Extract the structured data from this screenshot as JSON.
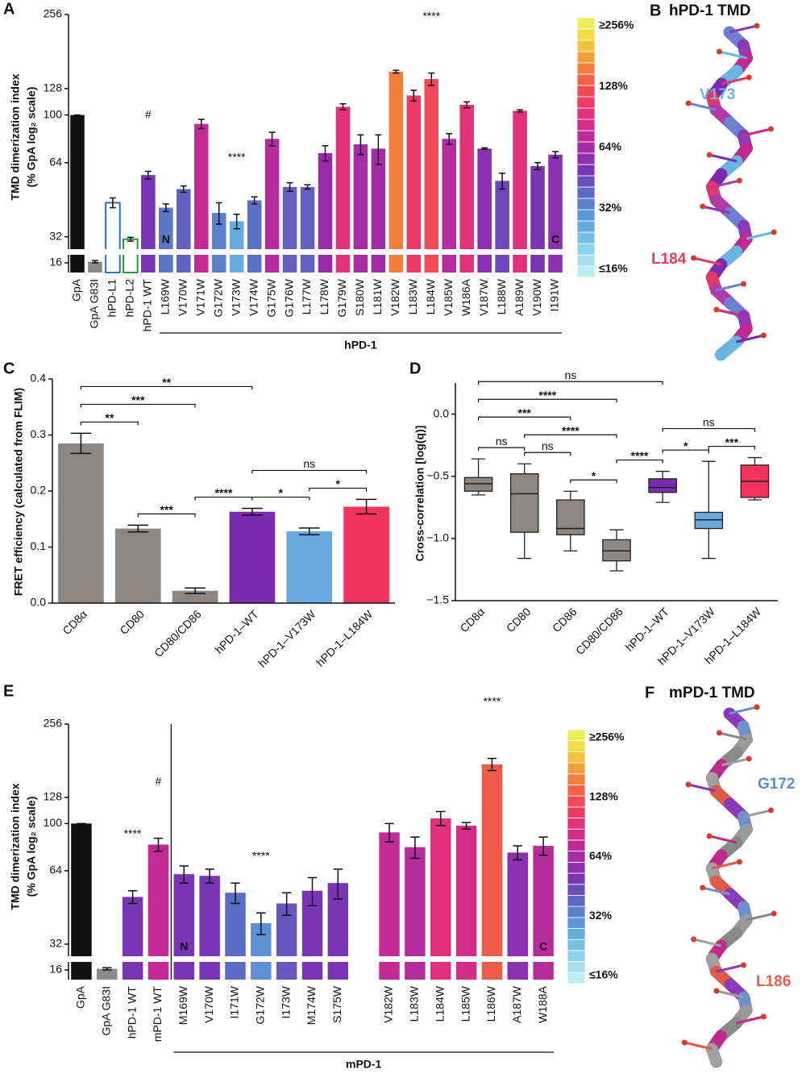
{
  "chart_data": [
    {
      "panel": "A",
      "type": "bar",
      "yscale": "log2",
      "ylabel": [
        "TMD dimerization index",
        "(% GpA log₂ scale)"
      ],
      "ylim": [
        16,
        256
      ],
      "yticks": [
        16,
        32,
        64,
        100,
        128,
        256
      ],
      "xtick_rotation": 90,
      "categories": [
        "GpA",
        "GpA G83I",
        "hPD-L1",
        "hPD-L2",
        "hPD-1 WT",
        "L169W",
        "V170W",
        "V171W",
        "G172W",
        "V173W",
        "V174W",
        "G175W",
        "G176W",
        "L177W",
        "L178W",
        "G179W",
        "S180W",
        "L181W",
        "V182W",
        "L183W",
        "L184W",
        "V185W",
        "W186A",
        "V187W",
        "L188W",
        "A189W",
        "V190W",
        "I191W"
      ],
      "values": [
        100,
        16.5,
        44,
        30,
        57,
        42,
        50,
        92,
        40,
        37,
        45,
        80,
        51,
        51,
        70,
        108,
        76,
        73,
        150,
        120,
        140,
        80,
        110,
        73,
        54,
        104,
        62,
        69
      ],
      "errors": [
        0,
        0.5,
        2,
        1.5,
        2,
        1.5,
        1.5,
        4,
        4,
        2.5,
        1.5,
        5,
        2,
        1,
        5,
        3,
        7,
        10,
        2,
        6,
        8,
        4,
        3,
        0.5,
        4,
        1,
        2,
        2
      ],
      "colors": [
        "#111111",
        "#8a8a8a",
        "#2e6fc0",
        "#2a9a3a",
        "#7a35b5",
        "#5a78c8",
        "#6262c2",
        "#c42a96",
        "#5d7fcc",
        "#64abe0",
        "#5a70c6",
        "#b52c9c",
        "#6360c0",
        "#6360c0",
        "#9a2aaa",
        "#e3327a",
        "#a62ca4",
        "#a22ca6",
        "#f2803c",
        "#ec3a66",
        "#f04a58",
        "#b52c9c",
        "#e3327a",
        "#8a30b0",
        "#6e48ba",
        "#e0307e",
        "#7a35b5",
        "#8a30b0"
      ],
      "hollow": [
        false,
        false,
        true,
        true,
        false,
        false,
        false,
        false,
        false,
        false,
        false,
        false,
        false,
        false,
        false,
        false,
        false,
        false,
        false,
        false,
        false,
        false,
        false,
        false,
        false,
        false,
        false,
        false
      ],
      "annotations": [
        {
          "text": "#",
          "index": 4
        },
        {
          "text": "****",
          "index": 9
        },
        {
          "text": "****",
          "index": 20
        }
      ],
      "inner_labels": [
        {
          "text": "N",
          "index": 5
        },
        {
          "text": "C",
          "index": 27
        }
      ],
      "group": {
        "label": "hPD-1",
        "from": 5,
        "to": 27
      },
      "colorbar": {
        "colors": [
          "#bdeef3",
          "#a6e0ee",
          "#8fd0ec",
          "#78bfe8",
          "#64abe0",
          "#5d96d6",
          "#5a80cc",
          "#5f68c2",
          "#6a4fba",
          "#7a35b5",
          "#9030ae",
          "#a62ca4",
          "#bd2b98",
          "#d22d88",
          "#e33277",
          "#ed3a66",
          "#f04a58",
          "#f2644a",
          "#f38040",
          "#f5a03c",
          "#f5c240",
          "#f3dc48",
          "#efec5a"
        ],
        "ticks": [
          {
            "value": 16,
            "label": "≤16%"
          },
          {
            "value": 32,
            "label": "32%"
          },
          {
            "value": 64,
            "label": "64%"
          },
          {
            "value": 128,
            "label": "128%"
          },
          {
            "value": 256,
            "label": "≥256%"
          }
        ]
      }
    },
    {
      "panel": "C",
      "type": "bar",
      "ylabel": "FRET efficiency (calculated from FLIM)",
      "ylim": [
        0,
        0.4
      ],
      "yticks": [
        {
          "value": 0,
          "label": "0.0"
        },
        0.1,
        0.2,
        0.3,
        0.4
      ],
      "xtick_rotation": 45,
      "categories": [
        "CD8α",
        "CD80",
        "CD80/CD86",
        "hPD-1–WT",
        "hPD-1–V173W",
        "hPD-1–L184W"
      ],
      "values": [
        0.285,
        0.133,
        0.022,
        0.163,
        0.128,
        0.172
      ],
      "errors": [
        0.018,
        0.006,
        0.005,
        0.006,
        0.006,
        0.013
      ],
      "colors": [
        "#8c8782",
        "#8c8782",
        "#8c8782",
        "#7b2ab0",
        "#6aa9de",
        "#f0345c"
      ],
      "brackets": [
        {
          "pair": [
            0,
            3
          ],
          "label": "**"
        },
        {
          "pair": [
            0,
            2
          ],
          "label": "***"
        },
        {
          "pair": [
            0,
            1
          ],
          "label": "**"
        },
        {
          "pair": [
            3,
            5
          ],
          "label": "ns"
        },
        {
          "pair": [
            1,
            2
          ],
          "label": "***"
        },
        {
          "pair": [
            2,
            3
          ],
          "label": "****"
        },
        {
          "pair": [
            3,
            4
          ],
          "label": "*"
        },
        {
          "pair": [
            4,
            5
          ],
          "label": "*"
        }
      ]
    },
    {
      "panel": "D",
      "type": "box",
      "ylabel": "Cross-correlation [log(q)]",
      "ylim": [
        -1.5,
        0.25
      ],
      "yticks": [
        {
          "value": -1.5,
          "label": "−1.5"
        },
        {
          "value": -1,
          "label": "−1.0"
        },
        {
          "value": -0.5,
          "label": "−0.5"
        },
        {
          "value": 0,
          "label": "0.0"
        }
      ],
      "xtick_rotation": 45,
      "categories": [
        "CD8α",
        "CD80",
        "CD86",
        "CD80/CD86",
        "hPD-1–WT",
        "hPD-1–V173W",
        "hPD-1–L184W"
      ],
      "whisker_low": [
        -0.65,
        -1.16,
        -1.1,
        -1.26,
        -0.71,
        -1.16,
        -0.69
      ],
      "q1": [
        -0.62,
        -0.95,
        -0.97,
        -1.18,
        -0.63,
        -0.92,
        -0.67
      ],
      "median": [
        -0.56,
        -0.64,
        -0.92,
        -1.1,
        -0.59,
        -0.85,
        -0.54
      ],
      "q3": [
        -0.51,
        -0.48,
        -0.69,
        -1.01,
        -0.52,
        -0.79,
        -0.41
      ],
      "whisker_high": [
        -0.36,
        -0.4,
        -0.62,
        -0.93,
        -0.46,
        -0.38,
        -0.35
      ],
      "colors": [
        "#8c8782",
        "#8c8782",
        "#8c8782",
        "#8c8782",
        "#7b2ab0",
        "#6aa9de",
        "#f0345c"
      ],
      "brackets": [
        {
          "pair": [
            0,
            4
          ],
          "label": "ns"
        },
        {
          "pair": [
            0,
            3
          ],
          "label": "****"
        },
        {
          "pair": [
            1,
            3
          ],
          "label": "****"
        },
        {
          "pair": [
            0,
            2
          ],
          "label": "***"
        },
        {
          "pair": [
            0,
            1
          ],
          "label": "ns"
        },
        {
          "pair": [
            1,
            2
          ],
          "label": "ns"
        },
        {
          "pair": [
            2,
            3
          ],
          "label": "*"
        },
        {
          "pair": [
            3,
            4
          ],
          "label": "****"
        },
        {
          "pair": [
            4,
            5
          ],
          "label": "*"
        },
        {
          "pair": [
            5,
            6
          ],
          "label": "***"
        },
        {
          "pair": [
            4,
            6
          ],
          "label": "ns"
        }
      ]
    },
    {
      "panel": "E",
      "type": "bar",
      "yscale": "log2",
      "ylabel": [
        "TMD dimerization index",
        "(% GpA log₂ scale)"
      ],
      "ylim": [
        16,
        256
      ],
      "yticks": [
        16,
        32,
        64,
        100,
        128,
        256
      ],
      "xtick_rotation": 90,
      "categories": [
        "GpA",
        "GpA G83I",
        "hPD-1 WT",
        "mPD-1 WT",
        "M169W",
        "V170W",
        "I171W",
        "G172W",
        "I173W",
        "M174W",
        "S175W",
        null,
        "V182W",
        "L183W",
        "L184W",
        "L185W",
        "L186W",
        "A187W",
        "W188A"
      ],
      "values": [
        100,
        16.5,
        50,
        82,
        62,
        61,
        52,
        39,
        47,
        53,
        57,
        null,
        92,
        80,
        105,
        98,
        175,
        76,
        81
      ],
      "errors": [
        0,
        0.5,
        3,
        5,
        5,
        4,
        5,
        4,
        5,
        7,
        8,
        null,
        8,
        8,
        7,
        3,
        10,
        5,
        7
      ],
      "colors": [
        "#111111",
        "#8a8a8a",
        "#7a35b5",
        "#c42a96",
        "#7a35b5",
        "#7a35b5",
        "#5a6cc6",
        "#5d8fd4",
        "#6656be",
        "#7a35b5",
        "#7a35b5",
        null,
        "#c42a96",
        "#b52c9c",
        "#e0307e",
        "#d22d88",
        "#f05a48",
        "#8a30b0",
        "#b52c9c"
      ],
      "annotations": [
        {
          "text": "****",
          "index": 2
        },
        {
          "text": "#",
          "index": 3
        },
        {
          "text": "****",
          "index": 7
        },
        {
          "text": "****",
          "index": 16
        }
      ],
      "inner_labels": [
        {
          "text": "N",
          "index": 4
        },
        {
          "text": "C",
          "index": 18
        }
      ],
      "group": {
        "label": "mPD-1",
        "from": 4,
        "to": 18
      },
      "divider": true,
      "colorbar": {
        "colors": [
          "#bdeef3",
          "#a6e0ee",
          "#8fd0ec",
          "#78bfe8",
          "#64abe0",
          "#5d96d6",
          "#5a80cc",
          "#5f68c2",
          "#6a4fba",
          "#7a35b5",
          "#9030ae",
          "#a62ca4",
          "#bd2b98",
          "#d22d88",
          "#e33277",
          "#ed3a66",
          "#f04a58",
          "#f2644a",
          "#f38040",
          "#f5a03c",
          "#f5c240",
          "#f3dc48",
          "#efec5a"
        ],
        "ticks": [
          {
            "value": 16,
            "label": "≤16%"
          },
          {
            "value": 32,
            "label": "32%"
          },
          {
            "value": 64,
            "label": "64%"
          },
          {
            "value": 128,
            "label": "128%"
          },
          {
            "value": 256,
            "label": "≥256%"
          }
        ]
      }
    }
  ],
  "structures": [
    {
      "panel": "B",
      "title": "hPD-1 TMD",
      "residues": [
        {
          "label": "V173",
          "color": "#6ab4e0"
        },
        {
          "label": "L184",
          "color": "#ee3a5c"
        }
      ]
    },
    {
      "panel": "F",
      "title": "mPD-1 TMD",
      "residues": [
        {
          "label": "G172",
          "color": "#5b8fd0"
        },
        {
          "label": "L186",
          "color": "#f05a48"
        }
      ]
    }
  ]
}
